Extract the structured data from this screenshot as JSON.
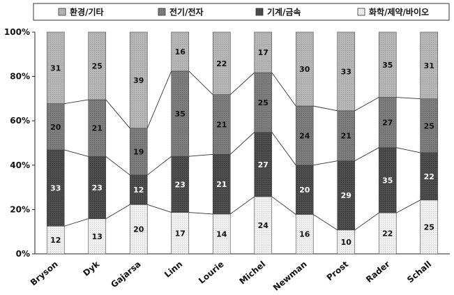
{
  "chart_data": {
    "type": "bar",
    "stacked": true,
    "normalized": true,
    "categories": [
      "Bryson",
      "Dyk",
      "Gajarsa",
      "Linn",
      "Lourie",
      "Michel",
      "Newman",
      "Prost",
      "Rader",
      "Schall"
    ],
    "series": [
      {
        "name": "화학/제약/바이오",
        "values": [
          12,
          13,
          20,
          17,
          14,
          24,
          16,
          10,
          22,
          25
        ],
        "color": "#ebebeb"
      },
      {
        "name": "기계/금속",
        "values": [
          33,
          23,
          12,
          23,
          21,
          27,
          20,
          29,
          35,
          22
        ],
        "color": "#4a4a4a"
      },
      {
        "name": "전기/전자",
        "values": [
          20,
          21,
          19,
          35,
          21,
          25,
          24,
          21,
          27,
          25
        ],
        "color": "#7b7b7b"
      },
      {
        "name": "환경/기타",
        "values": [
          31,
          25,
          39,
          16,
          22,
          17,
          30,
          33,
          35,
          31
        ],
        "color": "#b3b3b3"
      }
    ],
    "legend_order": [
      "환경/기타",
      "전기/전자",
      "기계/금속",
      "화학/제약/바이오"
    ],
    "y_ticks": [
      "0%",
      "20%",
      "40%",
      "60%",
      "80%",
      "100%"
    ],
    "ylim": [
      0,
      100
    ],
    "legend_position": "top",
    "connector_lines": true,
    "grid": false
  }
}
